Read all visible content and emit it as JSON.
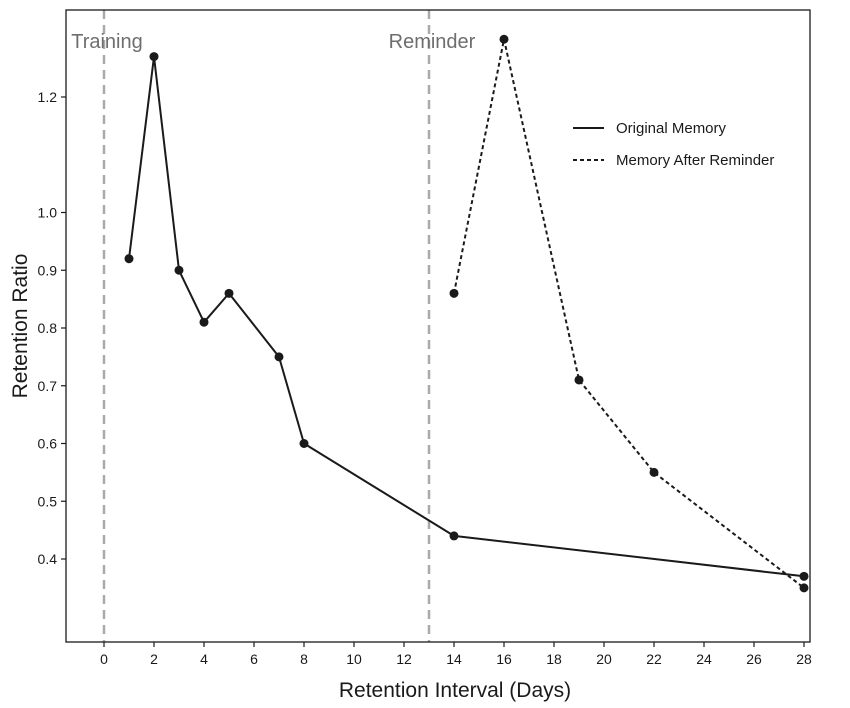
{
  "chart_data": {
    "type": "line",
    "xlabel": "Retention Interval (Days)",
    "ylabel": "Retention Ratio",
    "xlim": [
      -1.5,
      29.2
    ],
    "ylim": [
      0.27,
      1.34
    ],
    "x_ticks": [
      0,
      2,
      4,
      6,
      8,
      10,
      12,
      14,
      16,
      18,
      20,
      22,
      24,
      26,
      28
    ],
    "y_ticks": [
      0.4,
      0.5,
      0.6,
      0.7,
      0.8,
      0.9,
      1.0,
      1.2
    ],
    "y_tick_labels": [
      "0.4",
      "0.5",
      "0.6",
      "0.7",
      "0.8",
      "0.9",
      "1.0",
      "1.2"
    ],
    "grid": false,
    "legend_position": "top-right",
    "vertical_lines": [
      {
        "x": 0,
        "label": "Training",
        "color": "#aaaaaa"
      },
      {
        "x": 13,
        "label": "Reminder",
        "color": "#aaaaaa"
      }
    ],
    "series": [
      {
        "name": "Original Memory",
        "linestyle": "solid",
        "color": "#1a1a1a",
        "x": [
          1,
          2,
          3,
          4,
          5,
          7,
          8,
          14,
          28
        ],
        "y": [
          0.92,
          1.27,
          0.9,
          0.81,
          0.86,
          0.75,
          0.6,
          0.44,
          0.37
        ]
      },
      {
        "name": "Memory After Reminder",
        "linestyle": "dashed",
        "color": "#1a1a1a",
        "x": [
          14,
          16,
          19,
          22,
          28
        ],
        "y": [
          0.86,
          1.3,
          0.71,
          0.55,
          0.35
        ]
      }
    ]
  }
}
